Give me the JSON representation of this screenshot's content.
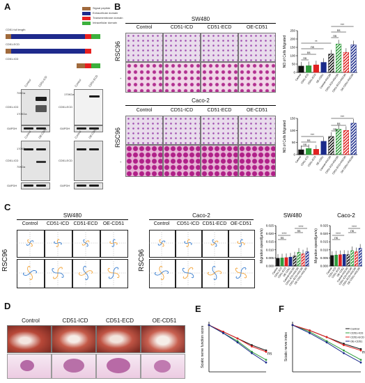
{
  "panels": {
    "a": "A",
    "b": "B",
    "c": "C",
    "d": "D",
    "e": "E",
    "f": "F"
  },
  "panel_a": {
    "legend": [
      "Signal peptide",
      "Extracellular domain",
      "Transmembrane domain",
      "Intracellular domain"
    ],
    "legend_colors": [
      "#a06a3c",
      "#1e2a8c",
      "#e82020",
      "#3cb03c"
    ],
    "constructs": [
      "CD51 full length",
      "CD51-ECD",
      "CD51-ICD"
    ],
    "blot1": {
      "cols": [
        "Control",
        "CD51-ICD"
      ],
      "rows": [
        "CD51-ICD",
        "GAPDH"
      ],
      "kda": [
        "70KDa",
        "170KDa"
      ]
    },
    "blot2": {
      "cols": [
        "Control",
        "CD51-ECD"
      ],
      "rows": [
        "CD51-ECD",
        "GAPDH"
      ],
      "kda": [
        "170KDa"
      ]
    },
    "blot3": {
      "cols": [
        "Control",
        "OE-CD51"
      ],
      "rows": [
        "CD51-ICD",
        "GAPDH"
      ],
      "kda": [
        "170KDa",
        "70KDa"
      ]
    },
    "blot4": {
      "cols": [
        "Control",
        "OE-CD51"
      ],
      "rows": [
        "CD51-ECD",
        "GAPDH"
      ],
      "kda": []
    }
  },
  "panel_b": {
    "cell_lines": [
      "SW480",
      "Caco-2"
    ],
    "conditions": [
      "Control",
      "CD51-ICD",
      "CD51-ECD",
      "OE-CD51"
    ],
    "row_label": "RSC96",
    "row_marks": [
      "-",
      "+"
    ],
    "sig": [
      "ns",
      "**",
      "***"
    ]
  },
  "panel_c": {
    "cell_lines": [
      "SW480",
      "Caco-2"
    ],
    "conditions": [
      "Control",
      "CD51-ICD",
      "CD51-ECD",
      "OE-CD51"
    ],
    "row_label": "RSC96",
    "chart_titles": [
      "SW480",
      "Caco-2"
    ],
    "ylabel": "Migration speed(μm/s)",
    "sig": [
      "ns",
      "****"
    ]
  },
  "panel_d": {
    "conditions": [
      "Control",
      "CD51-ICD",
      "CD51-ECD",
      "OE-CD51"
    ]
  },
  "panel_e": {
    "ylabel": "Sciatic nerve function score",
    "ns": "ns"
  },
  "panel_f": {
    "ylabel": "Sciatic nerve index",
    "ns": "ns",
    "legend": [
      "Control",
      "CD51-ICD",
      "CD51-ECD",
      "OE-CD51"
    ]
  },
  "colors": {
    "control": "#111111",
    "icd": "#2e9b3a",
    "ecd": "#e02020",
    "oe": "#1a2a8a"
  },
  "chart_data": [
    {
      "type": "bar",
      "title": "",
      "ylabel": "NO.of Cells Migrated",
      "categories": [
        "Control",
        "CD51-ICD",
        "CD51-ECD",
        "OE-CD51",
        "Control+RSC96",
        "CD51-ICD+RSC96",
        "CD51-ECD+RSC96",
        "OE-CD51+RSC96"
      ],
      "values": [
        38,
        40,
        45,
        60,
        110,
        170,
        120,
        165
      ],
      "ylim": [
        0,
        250
      ],
      "yticks": [
        "250",
        "200",
        "150",
        "100",
        "50",
        "0"
      ]
    },
    {
      "type": "bar",
      "title": "",
      "ylabel": "NO.of Cells Migrated",
      "categories": [
        "Control",
        "CD51-ICD",
        "CD51-ECD",
        "OE-CD51",
        "Control+RSC96",
        "CD51-ICD+RSC96",
        "CD51-ECD+RSC96",
        "OE-CD51+RSC96"
      ],
      "values": [
        20,
        25,
        22,
        55,
        75,
        105,
        100,
        130
      ],
      "ylim": [
        0,
        150
      ],
      "yticks": [
        "150",
        "100",
        "50",
        "0"
      ]
    },
    {
      "type": "bar",
      "title": "SW480",
      "ylabel": "Migration speed(μm/s)",
      "categories": [
        "Control",
        "CD51-ICD",
        "CD51-ECD",
        "OE-CD51",
        "Control+RSC96",
        "CD51-ICD+RSC96",
        "CD51-ECD+RSC96",
        "OE-CD51+RSC96"
      ],
      "values": [
        0.0048,
        0.005,
        0.0052,
        0.0055,
        0.0062,
        0.0085,
        0.0075,
        0.0088
      ],
      "ylim": [
        0,
        0.025
      ],
      "yticks": [
        "0.025",
        "0.020",
        "0.015",
        "0.010",
        "0.005",
        "0.000"
      ]
    },
    {
      "type": "bar",
      "title": "Caco-2",
      "ylabel": "Migration speed(μm/s)",
      "categories": [
        "Control",
        "CD51-ICD",
        "CD51-ECD",
        "OE-CD51",
        "Control+RSC96",
        "CD51-ICD+RSC96",
        "CD51-ECD+RSC96",
        "OE-CD51+RSC96"
      ],
      "values": [
        0.0065,
        0.0068,
        0.007,
        0.0072,
        0.007,
        0.0095,
        0.0088,
        0.011
      ],
      "ylim": [
        0,
        0.025
      ],
      "yticks": [
        "0.025",
        "0.020",
        "0.015",
        "0.010",
        "0.005",
        "0.000"
      ]
    },
    {
      "type": "line",
      "title": "",
      "ylabel": "Sciatic nerve function score",
      "x": [
        0,
        1,
        2,
        3,
        4
      ],
      "series": [
        {
          "name": "Control",
          "values": [
            0,
            -10,
            -20,
            -30,
            -38
          ]
        },
        {
          "name": "CD51-ICD",
          "values": [
            0,
            -12,
            -24,
            -40,
            -52
          ]
        },
        {
          "name": "CD51-ECD",
          "values": [
            0,
            -10,
            -20,
            -32,
            -40
          ]
        },
        {
          "name": "OE-CD51",
          "values": [
            0,
            -12,
            -26,
            -42,
            -56
          ]
        }
      ],
      "ylim": [
        -70,
        5
      ]
    },
    {
      "type": "line",
      "title": "",
      "ylabel": "Sciatic nerve index",
      "x": [
        0,
        1,
        2,
        3,
        4
      ],
      "series": [
        {
          "name": "Control",
          "values": [
            0,
            -8,
            -18,
            -28,
            -36
          ]
        },
        {
          "name": "CD51-ICD",
          "values": [
            0,
            -10,
            -24,
            -38,
            -52
          ]
        },
        {
          "name": "CD51-ECD",
          "values": [
            0,
            -8,
            -18,
            -30,
            -38
          ]
        },
        {
          "name": "OE-CD51",
          "values": [
            0,
            -12,
            -26,
            -42,
            -56
          ]
        }
      ],
      "ylim": [
        -70,
        5
      ]
    }
  ]
}
